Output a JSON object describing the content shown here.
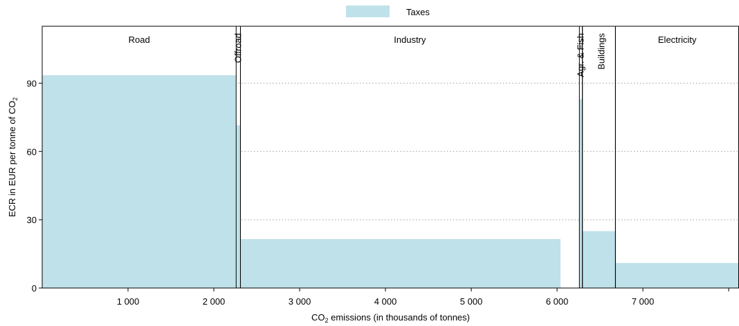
{
  "chart_data": {
    "type": "bar",
    "title": "",
    "xlabel_prefix": "CO",
    "xlabel_sub": "2",
    "xlabel_suffix": " emissions (in thousands of tonnes)",
    "ylabel_prefix": "ECR in EUR per tonne of CO",
    "ylabel_sub": "2",
    "xlim": [
      0,
      8120
    ],
    "ylim": [
      0,
      115
    ],
    "yticks": [
      0,
      30,
      60,
      90
    ],
    "ytick_labels": [
      "0",
      "30",
      "60",
      "90"
    ],
    "xticks": [
      1000,
      2000,
      3000,
      4000,
      5000,
      6000,
      7000,
      8000
    ],
    "xtick_labels": [
      "1 000",
      "2 000",
      "3 000",
      "4 000",
      "5 000",
      "6 000",
      "7 000",
      ""
    ],
    "grid": "horizontal-dotted",
    "legend_position": "top-center",
    "series": [
      {
        "name": "Taxes",
        "color": "#bfe1e9",
        "bars": [
          {
            "x0": 0,
            "x1": 2260,
            "value": 93.5
          },
          {
            "x0": 2260,
            "x1": 2310,
            "value": 71.5
          },
          {
            "x0": 2310,
            "x1": 6040,
            "value": 21.5
          },
          {
            "x0": 6040,
            "x1": 6260,
            "value": 0
          },
          {
            "x0": 6260,
            "x1": 6295,
            "value": 83
          },
          {
            "x0": 6295,
            "x1": 6680,
            "value": 25
          },
          {
            "x0": 6680,
            "x1": 8120,
            "value": 11
          }
        ]
      }
    ],
    "sectors": [
      {
        "label": "Road",
        "x0": 0,
        "x1": 2260,
        "orientation": "horizontal"
      },
      {
        "label": "Offroad",
        "x0": 2260,
        "x1": 2310,
        "orientation": "vertical"
      },
      {
        "label": "Industry",
        "x0": 2310,
        "x1": 6260,
        "orientation": "horizontal"
      },
      {
        "label": "Agr. & Fish",
        "x0": 6260,
        "x1": 6295,
        "orientation": "vertical"
      },
      {
        "label": "Buildings",
        "x0": 6295,
        "x1": 6680,
        "orientation": "vertical"
      },
      {
        "label": "Electricity",
        "x0": 6680,
        "x1": 8120,
        "orientation": "horizontal"
      }
    ],
    "legend": [
      {
        "label": "Taxes",
        "color": "#bfe1e9"
      }
    ]
  }
}
